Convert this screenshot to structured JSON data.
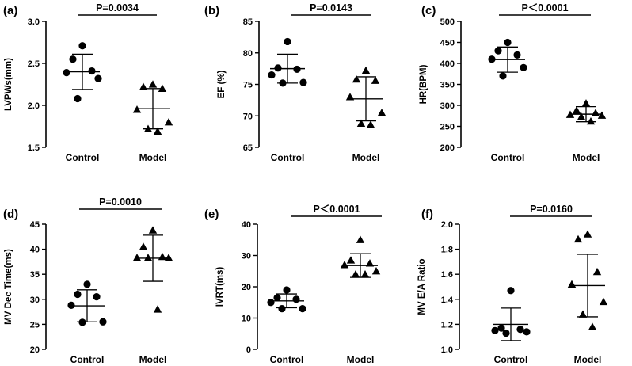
{
  "figure": {
    "background": "#ffffff",
    "ink": "#000000"
  },
  "chart_data": [
    {
      "type": "scatter",
      "panel": "(a)",
      "ylabel": "LVPWs(mm)",
      "categories": [
        "Control",
        "Model"
      ],
      "ylim": [
        1.5,
        3.0
      ],
      "yticks": [
        "1.5",
        "2.0",
        "2.5",
        "3.0"
      ],
      "pvalue": "P=0.0034",
      "series": [
        {
          "name": "Control",
          "marker": "circle",
          "values": [
            2.71,
            2.55,
            2.41,
            2.39,
            2.32,
            2.08
          ],
          "mean": 2.4,
          "sd": 0.21
        },
        {
          "name": "Model",
          "marker": "triangle",
          "values": [
            2.25,
            2.22,
            2.2,
            1.95,
            1.8,
            1.72,
            1.69
          ],
          "mean": 1.96,
          "sd": 0.24
        }
      ]
    },
    {
      "type": "scatter",
      "panel": "(b)",
      "ylabel": "EF (%)",
      "categories": [
        "Control",
        "Model"
      ],
      "ylim": [
        65,
        85
      ],
      "yticks": [
        "65",
        "70",
        "75",
        "80",
        "85"
      ],
      "pvalue": "P=0.0143",
      "series": [
        {
          "name": "Control",
          "marker": "circle",
          "values": [
            81.8,
            77.6,
            77.4,
            76.5,
            75.3,
            75.2
          ],
          "mean": 77.5,
          "sd": 2.3
        },
        {
          "name": "Model",
          "marker": "triangle",
          "values": [
            77.2,
            75.8,
            75.6,
            73.0,
            70.5,
            68.8,
            68.6
          ],
          "mean": 72.7,
          "sd": 3.5
        }
      ]
    },
    {
      "type": "scatter",
      "panel": "(c)",
      "ylabel": "HR(BPM)",
      "categories": [
        "Control",
        "Model"
      ],
      "ylim": [
        200,
        500
      ],
      "yticks": [
        "200",
        "250",
        "300",
        "350",
        "400",
        "450",
        "500"
      ],
      "pvalue": "P＜0.0001",
      "series": [
        {
          "name": "Control",
          "marker": "circle",
          "values": [
            450,
            430,
            420,
            410,
            390,
            370
          ],
          "mean": 409,
          "sd": 30
        },
        {
          "name": "Model",
          "marker": "triangle",
          "values": [
            305,
            288,
            282,
            278,
            276,
            273,
            262
          ],
          "mean": 279,
          "sd": 18
        }
      ]
    },
    {
      "type": "scatter",
      "panel": "(d)",
      "ylabel": "MV Dec Time(ms)",
      "categories": [
        "Control",
        "Model"
      ],
      "ylim": [
        20,
        45
      ],
      "yticks": [
        "20",
        "25",
        "30",
        "35",
        "40",
        "45"
      ],
      "pvalue": "P=0.0010",
      "series": [
        {
          "name": "Control",
          "marker": "circle",
          "values": [
            33.0,
            31.0,
            30.5,
            28.8,
            25.5,
            25.4
          ],
          "mean": 28.7,
          "sd": 3.2
        },
        {
          "name": "Model",
          "marker": "triangle",
          "values": [
            43.8,
            40.5,
            38.5,
            38.3,
            38.3,
            38.3,
            28.0
          ],
          "mean": 38.2,
          "sd": 4.6
        }
      ]
    },
    {
      "type": "scatter",
      "panel": "(e)",
      "ylabel": "IVRT(ms)",
      "categories": [
        "Control",
        "Model"
      ],
      "ylim": [
        0,
        40
      ],
      "yticks": [
        "0",
        "10",
        "20",
        "30",
        "40"
      ],
      "pvalue": "P＜0.0001",
      "series": [
        {
          "name": "Control",
          "marker": "circle",
          "values": [
            19.0,
            16.5,
            16.0,
            15.0,
            13.0,
            13.0
          ],
          "mean": 15.5,
          "sd": 2.2
        },
        {
          "name": "Model",
          "marker": "triangle",
          "values": [
            35.0,
            28.5,
            27.5,
            27.0,
            25.0,
            24.0,
            24.0
          ],
          "mean": 26.8,
          "sd": 3.8
        }
      ]
    },
    {
      "type": "scatter",
      "panel": "(f)",
      "ylabel": "MV E/A Ratio",
      "categories": [
        "Control",
        "Model"
      ],
      "ylim": [
        1.0,
        2.0
      ],
      "yticks": [
        "1.0",
        "1.2",
        "1.4",
        "1.6",
        "1.8",
        "2.0"
      ],
      "pvalue": "P=0.0160",
      "series": [
        {
          "name": "Control",
          "marker": "circle",
          "values": [
            1.47,
            1.17,
            1.16,
            1.15,
            1.14,
            1.13
          ],
          "mean": 1.2,
          "sd": 0.13
        },
        {
          "name": "Model",
          "marker": "triangle",
          "values": [
            1.92,
            1.88,
            1.62,
            1.52,
            1.38,
            1.28,
            1.18
          ],
          "mean": 1.51,
          "sd": 0.25
        }
      ]
    }
  ]
}
